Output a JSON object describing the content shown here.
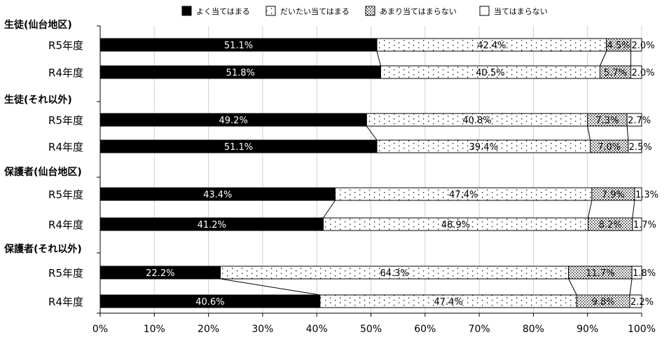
{
  "chart_data": {
    "type": "bar",
    "stacked": true,
    "orientation": "horizontal",
    "legend": {
      "placement": "top",
      "items": [
        {
          "label": "よく当てはまる",
          "pattern": "solid"
        },
        {
          "label": "だいたい当てはまる",
          "pattern": "sparse-dots"
        },
        {
          "label": "あまり当てはまらない",
          "pattern": "dense-dots"
        },
        {
          "label": "当てはまらない",
          "pattern": "white"
        }
      ]
    },
    "groups": [
      {
        "title": "生徒(仙台地区)",
        "rows": [
          {
            "label": "R5年度",
            "values": [
              51.1,
              42.4,
              4.5,
              2.0
            ],
            "value_labels": [
              "51.1%",
              "42.4%",
              "4.5%",
              "2.0%"
            ]
          },
          {
            "label": "R4年度",
            "values": [
              51.8,
              40.5,
              5.7,
              2.0
            ],
            "value_labels": [
              "51.8%",
              "40.5%",
              "5.7%",
              "2.0%"
            ]
          }
        ]
      },
      {
        "title": "生徒(それ以外)",
        "rows": [
          {
            "label": "R5年度",
            "values": [
              49.2,
              40.8,
              7.3,
              2.7
            ],
            "value_labels": [
              "49.2%",
              "40.8%",
              "7.3%",
              "2.7%"
            ]
          },
          {
            "label": "R4年度",
            "values": [
              51.1,
              39.4,
              7.0,
              2.5
            ],
            "value_labels": [
              "51.1%",
              "39.4%",
              "7.0%",
              "2.5%"
            ]
          }
        ]
      },
      {
        "title": "保護者(仙台地区)",
        "rows": [
          {
            "label": "R5年度",
            "values": [
              43.4,
              47.4,
              7.9,
              1.3
            ],
            "value_labels": [
              "43.4%",
              "47.4%",
              "7.9%",
              "1.3%"
            ]
          },
          {
            "label": "R4年度",
            "values": [
              41.2,
              48.9,
              8.2,
              1.7
            ],
            "value_labels": [
              "41.2%",
              "48.9%",
              "8.2%",
              "1.7%"
            ]
          }
        ]
      },
      {
        "title": "保護者(それ以外)",
        "rows": [
          {
            "label": "R5年度",
            "values": [
              22.2,
              64.3,
              11.7,
              1.8
            ],
            "value_labels": [
              "22.2%",
              "64.3%",
              "11.7%",
              "1.8%"
            ]
          },
          {
            "label": "R4年度",
            "values": [
              40.6,
              47.4,
              9.8,
              2.2
            ],
            "value_labels": [
              "40.6%",
              "47.4%",
              "9.8%",
              "2.2%"
            ]
          }
        ]
      }
    ],
    "x_ticks": [
      "0%",
      "10%",
      "20%",
      "30%",
      "40%",
      "50%",
      "60%",
      "70%",
      "80%",
      "90%",
      "100%"
    ],
    "xlim": [
      0,
      100
    ],
    "grid": true,
    "series_connectors": true
  }
}
